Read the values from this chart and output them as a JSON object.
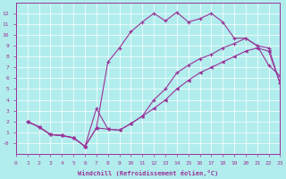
{
  "bg_color": "#b2eded",
  "line_color": "#993399",
  "xlabel": "Windchill (Refroidissement éolien,°C)",
  "xlim": [
    0,
    23
  ],
  "ylim": [
    -1,
    13
  ],
  "xticks": [
    0,
    1,
    2,
    3,
    4,
    5,
    6,
    7,
    8,
    9,
    10,
    11,
    12,
    13,
    14,
    15,
    16,
    17,
    18,
    19,
    20,
    21,
    22,
    23
  ],
  "yticks": [
    0,
    1,
    2,
    3,
    4,
    5,
    6,
    7,
    8,
    9,
    10,
    11,
    12
  ],
  "ytick_labels": [
    "-0",
    "1",
    "2",
    "3",
    "4",
    "5",
    "6",
    "7",
    "8",
    "9",
    "10",
    "11",
    "12"
  ],
  "curve_top_x": [
    1,
    2,
    3,
    4,
    5,
    6,
    7,
    8,
    9,
    10,
    11,
    12,
    13,
    14,
    15,
    16,
    17,
    18,
    19,
    20,
    21,
    22,
    23
  ],
  "curve_top_y": [
    2.0,
    1.5,
    0.8,
    0.7,
    0.5,
    -0.3,
    1.4,
    7.5,
    8.8,
    10.3,
    11.2,
    12.0,
    11.3,
    12.1,
    11.2,
    11.5,
    12.0,
    11.2,
    9.7,
    9.7,
    9.0,
    7.2,
    6.2
  ],
  "curve_mid_x": [
    1,
    2,
    3,
    4,
    5,
    6,
    7,
    8,
    9,
    10,
    11,
    12,
    13,
    14,
    15,
    16,
    17,
    18,
    19,
    20,
    21,
    22,
    23
  ],
  "curve_mid_y": [
    2.0,
    1.5,
    0.8,
    0.7,
    0.5,
    -0.3,
    3.2,
    1.3,
    1.2,
    1.8,
    2.5,
    4.0,
    5.0,
    6.5,
    7.2,
    7.8,
    8.2,
    8.8,
    9.2,
    9.7,
    9.0,
    8.8,
    5.5
  ],
  "curve_bot_x": [
    1,
    2,
    3,
    4,
    5,
    6,
    7,
    8,
    9,
    10,
    11,
    12,
    13,
    14,
    15,
    16,
    17,
    18,
    19,
    20,
    21,
    22,
    23
  ],
  "curve_bot_y": [
    2.0,
    1.5,
    0.8,
    0.7,
    0.5,
    -0.3,
    1.4,
    1.3,
    1.2,
    1.8,
    2.5,
    3.2,
    4.0,
    5.0,
    5.8,
    6.5,
    7.0,
    7.5,
    8.0,
    8.5,
    8.8,
    8.5,
    5.5
  ]
}
